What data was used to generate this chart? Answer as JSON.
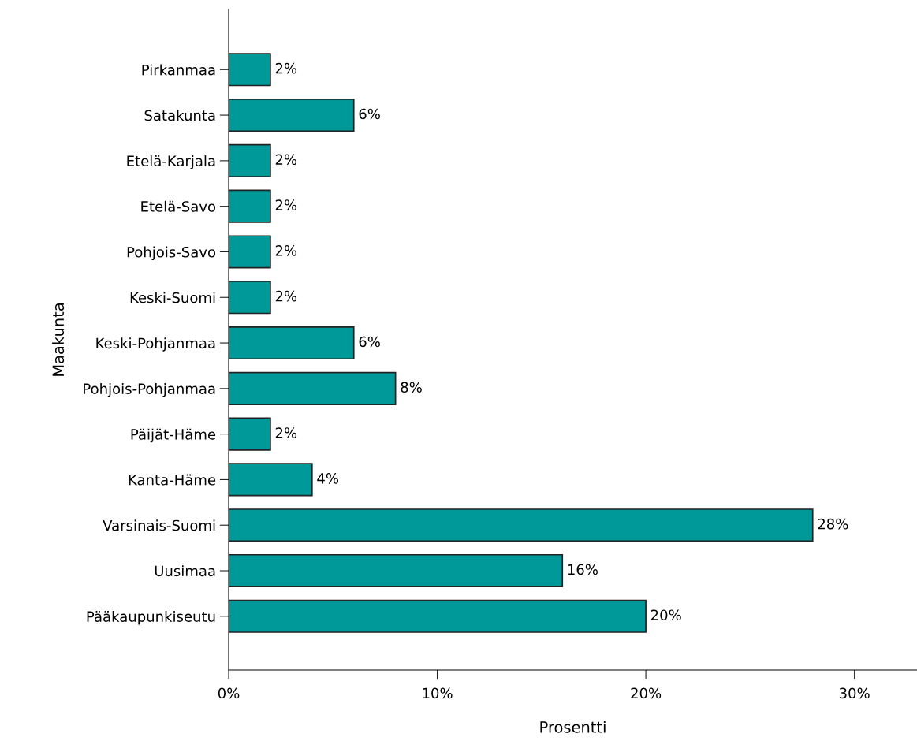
{
  "chart_data": {
    "type": "bar",
    "orientation": "horizontal",
    "xlabel": "Prosentti",
    "ylabel": "Maakunta",
    "categories": [
      "Pirkanmaa",
      "Satakunta",
      "Etelä-Karjala",
      "Etelä-Savo",
      "Pohjois-Savo",
      "Keski-Suomi",
      "Keski-Pohjanmaa",
      "Pohjois-Pohjanmaa",
      "Päijät-Häme",
      "Kanta-Häme",
      "Varsinais-Suomi",
      "Uusimaa",
      "Pääkaupunkiseutu"
    ],
    "values": [
      2,
      6,
      2,
      2,
      2,
      2,
      6,
      8,
      2,
      4,
      28,
      16,
      20
    ],
    "value_labels": [
      "2%",
      "6%",
      "2%",
      "2%",
      "2%",
      "2%",
      "6%",
      "8%",
      "2%",
      "4%",
      "28%",
      "16%",
      "20%"
    ],
    "color": "#009999",
    "xlim": [
      0,
      33
    ],
    "xticks": [
      {
        "value": 0,
        "label": "0%"
      },
      {
        "value": 10,
        "label": "10%"
      },
      {
        "value": 20,
        "label": "20%"
      },
      {
        "value": 30,
        "label": "30%"
      }
    ],
    "grid": false,
    "legend": false
  }
}
